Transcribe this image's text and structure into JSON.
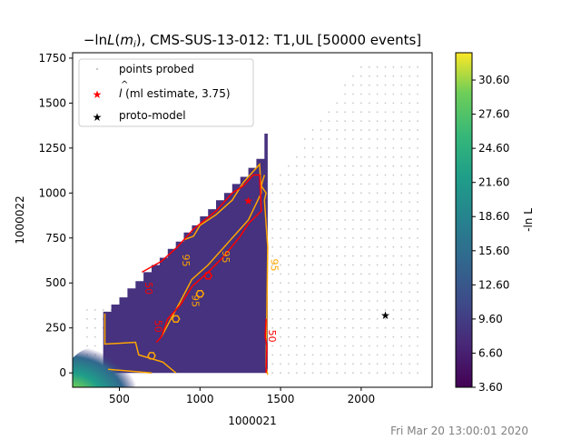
{
  "chart_data": {
    "type": "heatmap",
    "title_main": "−ln",
    "title_L": "L",
    "title_m": "m",
    "title_i": "i",
    "title_rest": ", CMS-SUS-13-012: T1,UL [50000 events]",
    "xlabel": "1000021",
    "ylabel": "1000022",
    "xlim": [
      210,
      2440
    ],
    "ylim": [
      -80,
      1780
    ],
    "xticks": [
      500,
      1000,
      1500,
      2000
    ],
    "yticks": [
      0,
      250,
      500,
      750,
      1000,
      1250,
      1500,
      1750
    ],
    "colorbar": {
      "label": "-ln L",
      "range": [
        3.6,
        33.0
      ],
      "ticks": [
        "3.60",
        "6.60",
        "9.60",
        "12.60",
        "15.60",
        "18.60",
        "21.60",
        "24.60",
        "27.60",
        "30.60"
      ],
      "colormap": "viridis"
    },
    "region": {
      "description": "filled triangle-like region of probed likelihood values",
      "x_min": 400,
      "x_max": 1400,
      "y_max": 1330,
      "typical_value": 5.0
    },
    "ml_estimate": {
      "x": 1300,
      "y": 955
    },
    "proto_model": {
      "x": 2150,
      "y": 320
    },
    "contour_labels": [
      {
        "text": "95",
        "x": 1440,
        "y": 600,
        "color": "orange"
      },
      {
        "text": "95",
        "x": 1140,
        "y": 645,
        "color": "orange"
      },
      {
        "text": "95",
        "x": 890,
        "y": 625,
        "color": "orange"
      },
      {
        "text": "95",
        "x": 950,
        "y": 400,
        "color": "orange"
      },
      {
        "text": "50",
        "x": 660,
        "y": 470,
        "color": "red"
      },
      {
        "text": "50",
        "x": 720,
        "y": 260,
        "color": "red"
      },
      {
        "text": "50",
        "x": 1425,
        "y": 205,
        "color": "red"
      }
    ],
    "legend": {
      "placement": "top-left",
      "entries": [
        {
          "label": "points probed",
          "marker": "small-gray-dot"
        },
        {
          "label_prefix": "l",
          "label_rest": " (ml estimate, 3.75)",
          "marker": "red-star"
        },
        {
          "label": "proto-model",
          "marker": "black-star"
        }
      ]
    }
  },
  "footer_timestamp": "Fri Mar 20 13:00:01 2020",
  "colors": {
    "points": "#c8c8c8",
    "ml_star": "#ff0000",
    "proto_star": "#000000",
    "contour_95": "#ffa500",
    "contour_50": "#ff0000",
    "low_fill": "#46327e",
    "timestamp": "#808080"
  }
}
